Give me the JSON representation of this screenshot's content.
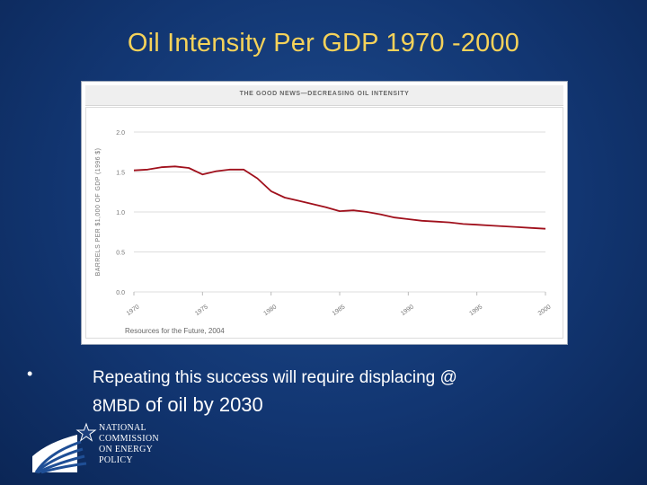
{
  "slide": {
    "title": "Oil Intensity Per GDP 1970 -2000",
    "bullet": "•",
    "text_part1": "Repeating this success will require displacing @",
    "text_part2": "8MBD",
    "text_part3": " of oil by 2030"
  },
  "logo": {
    "lines": [
      "NATIONAL",
      "COMMISSION",
      "ON ENERGY",
      "POLICY"
    ]
  },
  "chart_data": {
    "type": "line",
    "header": "THE GOOD NEWS—DECREASING OIL INTENSITY",
    "ylabel": "BARRELS PER $1,000 OF GDP (1996 $)",
    "xlabel": "",
    "source": "Resources for the Future, 2004",
    "xlim": [
      1970,
      2000
    ],
    "ylim": [
      0,
      2.0
    ],
    "x_ticks": [
      1970,
      1975,
      1980,
      1985,
      1990,
      1995,
      2000
    ],
    "y_ticks": [
      "0.0",
      "0.5",
      "1.0",
      "1.5",
      "2.0"
    ],
    "grid": true,
    "line_color": "#a0101c",
    "series": [
      {
        "x": [
          1970,
          1971,
          1972,
          1973,
          1974,
          1975,
          1976,
          1977,
          1978,
          1979,
          1980,
          1981,
          1982,
          1983,
          1984,
          1985,
          1986,
          1987,
          1988,
          1989,
          1990,
          1991,
          1992,
          1993,
          1994,
          1995,
          1996,
          1997,
          1998,
          1999,
          2000
        ],
        "y": [
          1.52,
          1.53,
          1.56,
          1.57,
          1.55,
          1.47,
          1.51,
          1.53,
          1.53,
          1.42,
          1.26,
          1.18,
          1.14,
          1.1,
          1.06,
          1.01,
          1.02,
          1.0,
          0.97,
          0.93,
          0.91,
          0.89,
          0.88,
          0.87,
          0.85,
          0.84,
          0.83,
          0.82,
          0.81,
          0.8,
          0.79
        ]
      }
    ]
  }
}
